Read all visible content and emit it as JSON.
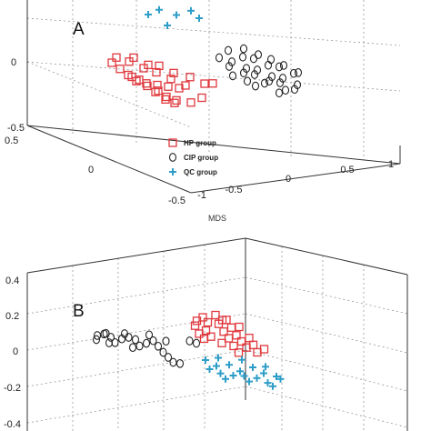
{
  "chart_data": [
    {
      "type": "scatter",
      "panel_label": "A",
      "title": "",
      "legend": [
        "HP group",
        "CIP group",
        "QC group"
      ],
      "legend_placement": "inside-bottom-center",
      "z_ticks": [
        "0",
        "-0.5"
      ],
      "y_ticks": [
        "0.5",
        "0",
        "-0.5"
      ],
      "x_ticks": [
        "-1",
        "-0.5",
        "0",
        "0.5",
        "1"
      ],
      "grid": true,
      "series": [
        {
          "name": "HP group",
          "marker": "square",
          "color": "#e0393e",
          "points": [
            [
              -0.7,
              0.1,
              0.05
            ],
            [
              -0.65,
              0.05,
              0.0
            ],
            [
              -0.6,
              0.0,
              -0.05
            ],
            [
              -0.55,
              -0.05,
              -0.1
            ],
            [
              -0.5,
              0.05,
              -0.15
            ],
            [
              -0.45,
              0.0,
              -0.2
            ],
            [
              -0.4,
              -0.05,
              -0.25
            ],
            [
              -0.35,
              0.05,
              -0.3
            ],
            [
              -0.3,
              0.0,
              -0.35
            ],
            [
              -0.25,
              -0.05,
              -0.4
            ],
            [
              -0.6,
              -0.1,
              0.0
            ],
            [
              -0.5,
              -0.15,
              -0.05
            ],
            [
              -0.4,
              -0.1,
              -0.1
            ],
            [
              -0.3,
              -0.05,
              -0.15
            ],
            [
              -0.2,
              0.0,
              -0.2
            ],
            [
              -0.55,
              0.15,
              0.05
            ],
            [
              -0.45,
              0.1,
              0.0
            ],
            [
              -0.35,
              0.1,
              -0.05
            ],
            [
              -0.25,
              0.05,
              -0.1
            ],
            [
              -0.15,
              0.0,
              -0.15
            ],
            [
              -0.1,
              0.05,
              -0.05
            ],
            [
              0.0,
              0.0,
              -0.1
            ],
            [
              -0.65,
              0.15,
              0.1
            ],
            [
              -0.5,
              0.2,
              0.08
            ],
            [
              -0.4,
              0.15,
              0.02
            ],
            [
              -0.3,
              0.2,
              -0.02
            ],
            [
              -0.2,
              0.15,
              -0.08
            ],
            [
              -0.35,
              -0.15,
              -0.28
            ],
            [
              -0.25,
              -0.1,
              -0.32
            ],
            [
              -0.15,
              -0.15,
              -0.3
            ],
            [
              -0.05,
              -0.1,
              -0.25
            ],
            [
              0.05,
              -0.05,
              -0.05
            ]
          ]
        },
        {
          "name": "CIP group",
          "marker": "circle",
          "color": "#222222",
          "points": [
            [
              0.2,
              0.3,
              0.1
            ],
            [
              0.3,
              0.3,
              0.05
            ],
            [
              0.4,
              0.25,
              0.0
            ],
            [
              0.5,
              0.3,
              -0.05
            ],
            [
              0.6,
              0.25,
              -0.1
            ],
            [
              0.7,
              0.3,
              -0.15
            ],
            [
              0.8,
              0.25,
              -0.2
            ],
            [
              0.25,
              0.2,
              0.05
            ],
            [
              0.35,
              0.15,
              0.0
            ],
            [
              0.45,
              0.2,
              -0.05
            ],
            [
              0.55,
              0.15,
              -0.1
            ],
            [
              0.65,
              0.2,
              -0.15
            ],
            [
              0.75,
              0.15,
              -0.2
            ],
            [
              0.3,
              0.4,
              0.15
            ],
            [
              0.4,
              0.35,
              0.1
            ],
            [
              0.5,
              0.4,
              0.05
            ],
            [
              0.6,
              0.35,
              0.0
            ],
            [
              0.7,
              0.4,
              -0.05
            ],
            [
              0.8,
              0.35,
              -0.1
            ],
            [
              0.35,
              0.05,
              -0.05
            ],
            [
              0.5,
              0.1,
              -0.1
            ],
            [
              0.65,
              0.05,
              -0.15
            ],
            [
              0.55,
              0.45,
              0.08
            ],
            [
              0.45,
              0.5,
              0.12
            ],
            [
              0.65,
              0.45,
              0.02
            ],
            [
              0.4,
              0.0,
              -0.08
            ],
            [
              0.25,
              0.1,
              -0.02
            ],
            [
              0.75,
              0.45,
              -0.06
            ],
            [
              0.85,
              0.4,
              -0.12
            ],
            [
              0.6,
              0.05,
              -0.2
            ]
          ]
        },
        {
          "name": "QC group",
          "marker": "plus",
          "color": "#2e9ec8",
          "points": [
            [
              -0.3,
              0.5,
              0.55
            ],
            [
              -0.2,
              0.55,
              0.6
            ],
            [
              -0.05,
              0.6,
              0.5
            ],
            [
              0.05,
              0.55,
              0.62
            ],
            [
              -0.15,
              0.5,
              0.4
            ],
            [
              0.1,
              0.5,
              0.55
            ]
          ]
        }
      ]
    },
    {
      "type": "scatter",
      "panel_label": "B",
      "title": "MDS",
      "z_ticks": [
        "0.4",
        "0.2",
        "0",
        "-0.2",
        "-0.4"
      ],
      "grid": true,
      "series": [
        {
          "name": "HP group",
          "marker": "square",
          "color": "#e0393e",
          "points": [
            [
              -0.1,
              0.3,
              0.3
            ],
            [
              0.0,
              0.35,
              0.35
            ],
            [
              0.1,
              0.3,
              0.32
            ],
            [
              -0.05,
              0.25,
              0.25
            ],
            [
              0.05,
              0.2,
              0.28
            ],
            [
              0.15,
              0.25,
              0.22
            ],
            [
              -0.15,
              0.2,
              0.18
            ],
            [
              -0.05,
              0.15,
              0.15
            ],
            [
              0.1,
              0.15,
              0.18
            ],
            [
              0.2,
              0.2,
              0.12
            ],
            [
              -0.1,
              0.1,
              0.1
            ],
            [
              0.0,
              0.1,
              0.08
            ],
            [
              0.15,
              0.1,
              0.1
            ],
            [
              0.25,
              0.15,
              0.05
            ],
            [
              -0.05,
              0.05,
              0.05
            ],
            [
              0.1,
              0.05,
              0.02
            ],
            [
              0.2,
              0.05,
              0.0
            ],
            [
              0.3,
              0.1,
              -0.02
            ],
            [
              0.35,
              0.15,
              0.02
            ],
            [
              0.4,
              0.05,
              -0.05
            ],
            [
              0.05,
              0.4,
              0.25
            ],
            [
              0.2,
              0.35,
              0.2
            ],
            [
              -0.15,
              0.3,
              0.22
            ],
            [
              0.3,
              0.25,
              0.08
            ],
            [
              0.25,
              0.0,
              -0.08
            ],
            [
              0.45,
              0.1,
              0.0
            ]
          ]
        },
        {
          "name": "CIP group",
          "marker": "circle",
          "color": "#222222",
          "points": [
            [
              -0.9,
              -0.3,
              0.0
            ],
            [
              -0.85,
              -0.25,
              0.02
            ],
            [
              -0.8,
              -0.2,
              -0.05
            ],
            [
              -0.75,
              -0.3,
              -0.08
            ],
            [
              -0.7,
              -0.25,
              -0.02
            ],
            [
              -0.65,
              -0.2,
              0.0
            ],
            [
              -0.6,
              -0.15,
              -0.05
            ],
            [
              -0.55,
              -0.25,
              -0.1
            ],
            [
              -0.5,
              -0.2,
              -0.06
            ],
            [
              -0.45,
              -0.15,
              -0.02
            ],
            [
              -0.9,
              -0.35,
              -0.05
            ],
            [
              -0.8,
              -0.3,
              -0.1
            ],
            [
              -0.6,
              -0.3,
              -0.12
            ],
            [
              -0.4,
              -0.2,
              -0.08
            ],
            [
              -0.35,
              -0.1,
              -0.02
            ],
            [
              -0.3,
              -0.3,
              -0.2
            ],
            [
              -0.25,
              -0.35,
              -0.25
            ],
            [
              -0.2,
              -0.3,
              -0.28
            ],
            [
              -0.15,
              -0.1,
              0.05
            ],
            [
              -0.5,
              -0.05,
              0.02
            ],
            [
              -0.7,
              -0.1,
              0.0
            ],
            [
              -0.85,
              -0.15,
              -0.02
            ],
            [
              -0.1,
              -0.05,
              0.0
            ],
            [
              -0.35,
              -0.25,
              -0.15
            ]
          ]
        },
        {
          "name": "QC group",
          "marker": "plus",
          "color": "#2e9ec8",
          "points": [
            [
              0.0,
              -0.2,
              -0.2
            ],
            [
              0.1,
              -0.25,
              -0.25
            ],
            [
              0.2,
              -0.2,
              -0.22
            ],
            [
              0.3,
              -0.25,
              -0.28
            ],
            [
              0.4,
              -0.2,
              -0.2
            ],
            [
              0.5,
              -0.25,
              -0.25
            ],
            [
              0.6,
              -0.2,
              -0.3
            ],
            [
              0.05,
              -0.3,
              -0.3
            ],
            [
              0.15,
              -0.35,
              -0.32
            ],
            [
              0.25,
              -0.3,
              -0.35
            ],
            [
              0.35,
              -0.35,
              -0.3
            ],
            [
              0.45,
              -0.3,
              -0.33
            ],
            [
              0.55,
              -0.35,
              -0.36
            ],
            [
              0.65,
              -0.3,
              -0.28
            ],
            [
              0.1,
              -0.15,
              -0.15
            ],
            [
              0.3,
              -0.15,
              -0.12
            ],
            [
              0.5,
              -0.15,
              -0.18
            ],
            [
              0.2,
              -0.4,
              -0.38
            ],
            [
              0.4,
              -0.4,
              -0.36
            ],
            [
              0.6,
              -0.4,
              -0.38
            ]
          ]
        }
      ]
    }
  ]
}
